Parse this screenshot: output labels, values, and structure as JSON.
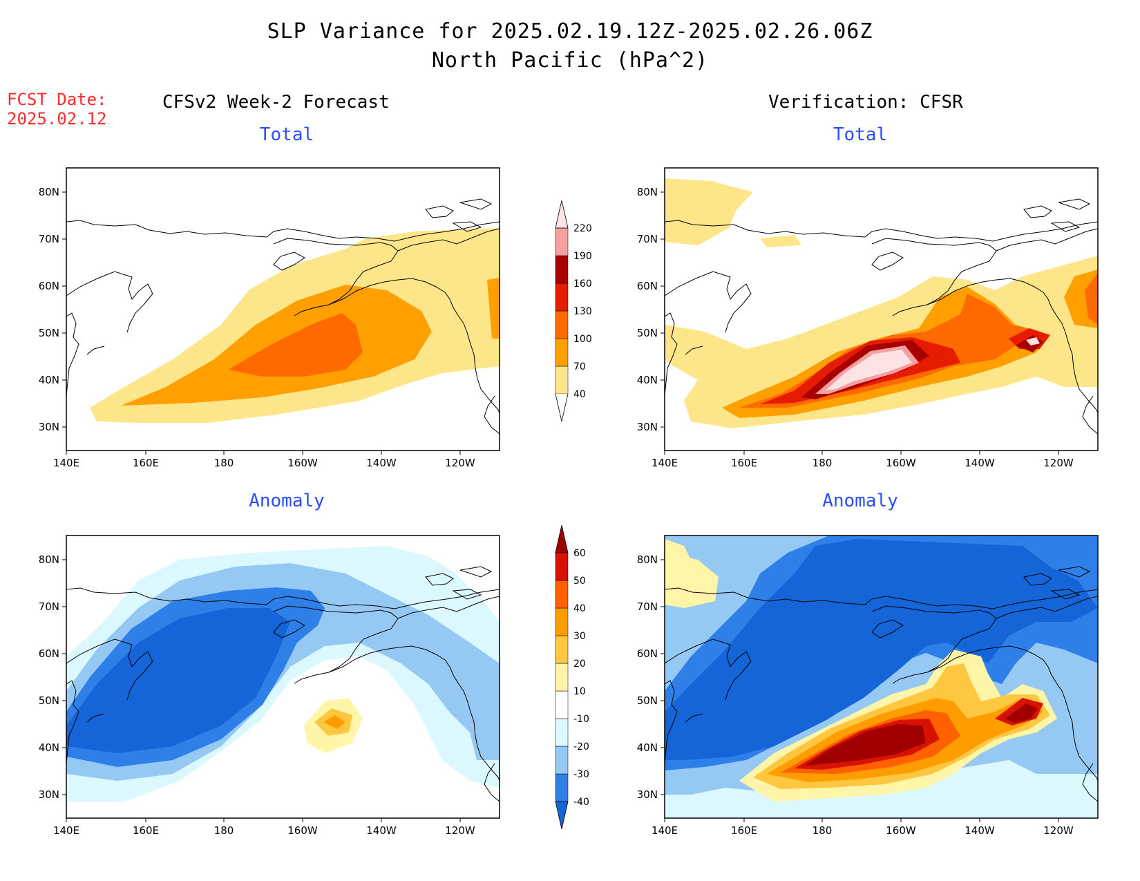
{
  "title": {
    "line1": "SLP Variance for 2025.02.19.12Z-2025.02.26.06Z",
    "line2": "North Pacific (hPa^2)"
  },
  "forecast_date": {
    "label": "FCST Date:",
    "value": "2025.02.12"
  },
  "columns": {
    "left": "CFSv2 Week-2 Forecast",
    "right": "Verification: CFSR"
  },
  "panels": {
    "top_left": "Total",
    "top_right": "Total",
    "bottom_left": "Anomaly",
    "bottom_right": "Anomaly"
  },
  "axes": {
    "lat_ticks": [
      "80N",
      "70N",
      "60N",
      "50N",
      "40N",
      "30N"
    ],
    "lon_ticks": [
      "140E",
      "160E",
      "180",
      "160W",
      "140W",
      "120W"
    ]
  },
  "colorbars": {
    "total": {
      "levels": [
        "40",
        "70",
        "100",
        "130",
        "160",
        "190",
        "220"
      ],
      "colors": [
        "#fde68a",
        "#ffa000",
        "#ff6a00",
        "#e51c00",
        "#a80000",
        "#f4a0a0",
        "#fde3e3"
      ]
    },
    "anomaly": {
      "levels": [
        "-40",
        "-30",
        "-20",
        "-10",
        "10",
        "20",
        "30",
        "40",
        "50",
        "60"
      ],
      "colors": [
        "#1565d8",
        "#2e7fe8",
        "#96c8f4",
        "#dcf8ff",
        "#ffffff",
        "#fff5a8",
        "#ffc640",
        "#ff9c00",
        "#ff6000",
        "#d81200",
        "#a00000"
      ]
    }
  }
}
